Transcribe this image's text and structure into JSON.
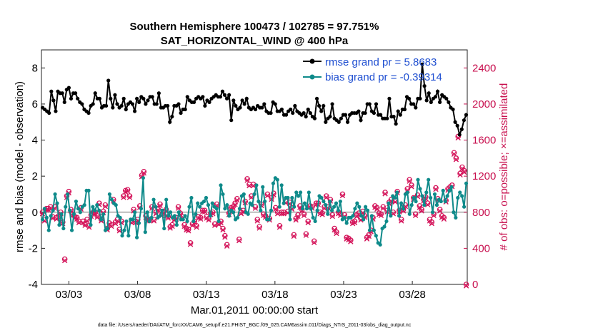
{
  "chart_data": {
    "type": "line",
    "title": "Southern Hemisphere 100473 / 102785 = 97.751%",
    "subtitle": "SAT_HORIZONTAL_WIND @ 400 hPa",
    "xlabel": "Mar.01,2011 00:00:00 start",
    "ylabel_left": "rmse and bias (model - observation)",
    "ylabel_right": "# of obs: o=possible; ×=assimilated",
    "x_tick_labels": [
      "03/03",
      "03/08",
      "03/13",
      "03/18",
      "03/23",
      "03/28"
    ],
    "x_tick_days": [
      3,
      8,
      13,
      18,
      23,
      28
    ],
    "x_range_days": [
      1,
      32
    ],
    "ylim_left": [
      -4,
      9
    ],
    "y_ticks_left": [
      -4,
      -2,
      0,
      2,
      4,
      6,
      8
    ],
    "ylim_right": [
      0,
      2600
    ],
    "y_ticks_right": [
      0,
      400,
      800,
      1200,
      1600,
      2000,
      2400
    ],
    "footer": "data file: /Users/raeder/DAI/ATM_forcXX/CAM6_setup/f.e21.FHIST_BGC.f09_025.CAM6assim.011/Diags_NTrS_2011-03/obs_diag_output.nc",
    "colors": {
      "rmse": "#000000",
      "bias": "#0e8a8a",
      "obs": "#d4145a",
      "right_axis": "#c8104f",
      "legend_text": "#1f4fd1",
      "zero_line": "#bbbbbb"
    },
    "series": [
      {
        "name": "rmse grand pr = 5.8683",
        "axis": "left",
        "values": [
          5.8,
          5.7,
          5.6,
          5.5,
          6.7,
          6.2,
          5.6,
          6.7,
          6.6,
          6.6,
          6.1,
          6.8,
          6.9,
          6.3,
          6.6,
          6.6,
          6.3,
          6.1,
          6.0,
          5.7,
          5.6,
          5.5,
          5.9,
          6.0,
          6.6,
          6.3,
          6.3,
          5.8,
          5.9,
          5.9,
          7.3,
          6.3,
          5.8,
          6.5,
          6.0,
          5.8,
          5.9,
          6.3,
          5.7,
          6.0,
          6.1,
          6.0,
          5.6,
          6.3,
          6.1,
          6.4,
          6.3,
          6.0,
          6.2,
          6.4,
          6.4,
          6.0,
          6.0,
          6.6,
          5.8,
          5.8,
          5.9,
          5.9,
          5.0,
          5.3,
          5.9,
          5.9,
          6.0,
          5.5,
          5.7,
          5.7,
          6.4,
          6.2,
          6.1,
          6.1,
          6.3,
          6.4,
          6.3,
          6.4,
          5.9,
          6.2,
          6.1,
          6.3,
          6.4,
          6.5,
          6.4,
          6.4,
          6.7,
          6.5,
          6.3,
          6.5,
          5.1,
          6.2,
          5.9,
          5.7,
          5.8,
          6.2,
          6.0,
          6.3,
          5.8,
          5.7,
          5.8,
          5.7,
          5.9,
          5.8,
          5.8,
          6.0,
          5.6,
          5.5,
          5.5,
          6.1,
          6.0,
          5.6,
          5.6,
          5.7,
          5.4,
          5.4,
          5.6,
          5.7,
          5.5,
          5.9,
          5.6,
          5.5,
          5.4,
          5.5,
          5.3,
          5.7,
          5.5,
          5.3,
          5.2,
          6.3,
          5.9,
          5.6,
          5.9,
          5.0,
          5.2,
          5.3,
          6.0,
          5.2,
          5.1,
          5.0,
          5.2,
          5.4,
          5.4,
          5.0,
          5.4,
          5.5,
          5.5,
          5.5,
          5.6,
          5.1,
          5.5,
          5.5,
          6.0,
          6.0,
          5.6,
          5.5,
          6.0,
          5.4,
          5.4,
          5.2,
          5.2,
          5.2,
          6.3,
          5.3,
          5.3,
          4.9,
          5.6,
          5.4,
          5.7,
          5.7,
          6.4,
          6.3,
          6.0,
          6.0,
          5.8,
          6.3,
          6.3,
          8.2,
          7.0,
          6.2,
          6.6,
          6.1,
          6.3,
          6.4,
          6.7,
          6.1,
          6.5,
          6.4,
          6.3,
          6.1,
          5.8,
          5.7,
          5.0,
          4.8,
          4.3,
          4.6,
          5.1,
          5.4
        ]
      },
      {
        "name": "bias grand pr = -0.39314",
        "axis": "left",
        "values": [
          -0.4,
          0.2,
          -0.3,
          -1.0,
          -0.2,
          0.1,
          1.0,
          0.5,
          -0.7,
          -0.1,
          -0.9,
          0.3,
          1.0,
          0.1,
          -1.0,
          -0.1,
          0.6,
          0.2,
          0.0,
          0.3,
          0.4,
          1.2,
          1.2,
          -0.7,
          0.3,
          0.1,
          0.4,
          0.1,
          -0.4,
          -0.1,
          -1.0,
          -0.9,
          1.0,
          0.7,
          0.5,
          0.4,
          -0.2,
          -0.3,
          -1.3,
          -1.0,
          -0.5,
          -1.3,
          -0.4,
          -0.4,
          0.0,
          -1.4,
          -0.6,
          0.2,
          1.9,
          -1.1,
          0.0,
          -0.5,
          -0.3,
          0.7,
          0.3,
          -0.3,
          -0.2,
          0.1,
          -0.9,
          0.7,
          -0.2,
          0.0,
          -0.3,
          -0.2,
          -0.7,
          0.0,
          -0.4,
          -0.4,
          -0.2,
          -0.5,
          0.3,
          0.8,
          -0.5,
          -0.1,
          0.5,
          0.3,
          0.5,
          0.6,
          0.8,
          0.4,
          -0.2,
          0.5,
          0.3,
          0.2,
          -0.5,
          1.5,
          1.0,
          0.2,
          0.4,
          -0.2,
          0.1,
          0.0,
          -0.4,
          -0.3,
          0.2,
          0.9,
          1.0,
          0.0,
          -0.1,
          0.5,
          0.4,
          1.0,
          1.5,
          0.6,
          0.1,
          1.4,
          0.6,
          -0.4,
          -0.4,
          0.1,
          1.6,
          1.9,
          1.8,
          0.3,
          1.5,
          0.5,
          0.8,
          0.8,
          -0.4,
          0.8,
          0.3,
          1.1,
          0.9,
          1.1,
          0.2,
          0.5,
          0.2,
          1.1,
          0.2,
          -0.3,
          -0.5,
          0.1,
          0.9,
          0.8,
          0.6,
          0.4,
          -0.1,
          0.6,
          0.1,
          0.3,
          0.5,
          0.1,
          0.6,
          -0.4,
          -0.3,
          -0.6,
          -0.3,
          -0.3,
          -0.2,
          0.2,
          0.5,
          0.3,
          -0.2,
          -0.4,
          0.3,
          0.1,
          -1.0,
          -0.2,
          -1.0,
          -1.3,
          -1.7,
          -1.8,
          -0.9,
          -0.8,
          -0.5,
          0.5,
          -0.2,
          0.9,
          0.8,
          1.1,
          -0.2,
          0.5,
          0.2,
          1.0,
          1.1,
          -0.1,
          0.4,
          0.8,
          0.6,
          1.8,
          1.3,
          0.9,
          0.4,
          1.1,
          1.8,
          0.8,
          0.0,
          1.0,
          0.4,
          0.7,
          0.6,
          1.2,
          0.6,
          0.9,
          1.2,
          1.4,
          0.0,
          -0.3,
          0.8,
          1.1,
          0.9,
          0.3,
          1.6
        ]
      },
      {
        "name": "# of obs",
        "axis": "right",
        "values": [
          800,
          720,
          840,
          840,
          860,
          750,
          860,
          740,
          760,
          800,
          690,
          280,
          980,
          1030,
          830,
          780,
          750,
          740,
          700,
          850,
          700,
          670,
          720,
          650,
          770,
          800,
          800,
          760,
          900,
          720,
          810,
          880,
          620,
          680,
          660,
          940,
          690,
          720,
          610,
          700,
          980,
          1040,
          1050,
          980,
          700,
          830,
          700,
          720,
          870,
          1210,
          1250,
          760,
          720,
          720,
          860,
          720,
          800,
          840,
          890,
          780,
          810,
          830,
          750,
          640,
          660,
          730,
          740,
          860,
          790,
          750,
          660,
          620,
          610,
          460,
          670,
          700,
          650,
          750,
          740,
          820,
          820,
          750,
          730,
          790,
          800,
          670,
          890,
          680,
          700,
          620,
          540,
          440,
          790,
          850,
          860,
          900,
          950,
          500,
          800,
          820,
          920,
          1170,
          1110,
          980,
          1110,
          860,
          720,
          640,
          890,
          780,
          760,
          1000,
          730,
          960,
          1010,
          850,
          800,
          650,
          800,
          800,
          920,
          810,
          910,
          850,
          550,
          730,
          770,
          870,
          830,
          780,
          560,
          700,
          870,
          860,
          480,
          900,
          900,
          800,
          790,
          860,
          980,
          860,
          940,
          770,
          620,
          580,
          800,
          780,
          1000,
          770,
          520,
          510,
          490,
          690,
          700,
          770,
          790,
          730,
          810,
          760,
          520,
          550,
          600,
          740,
          870,
          850,
          790,
          780,
          860,
          1020,
          820,
          910,
          940,
          800,
          930,
          1030,
          820,
          720,
          830,
          880,
          1060,
          1160,
          1100,
          960,
          780,
          990,
          870,
          830,
          940,
          970,
          900,
          720,
          690,
          780,
          1070,
          950,
          830,
          760,
          740,
          930,
          1060,
          1080,
          1100,
          1460,
          1400,
          1640,
          1230,
          1300,
          1260,
          0
        ]
      }
    ],
    "legend_position": "top-right",
    "grid": false
  }
}
